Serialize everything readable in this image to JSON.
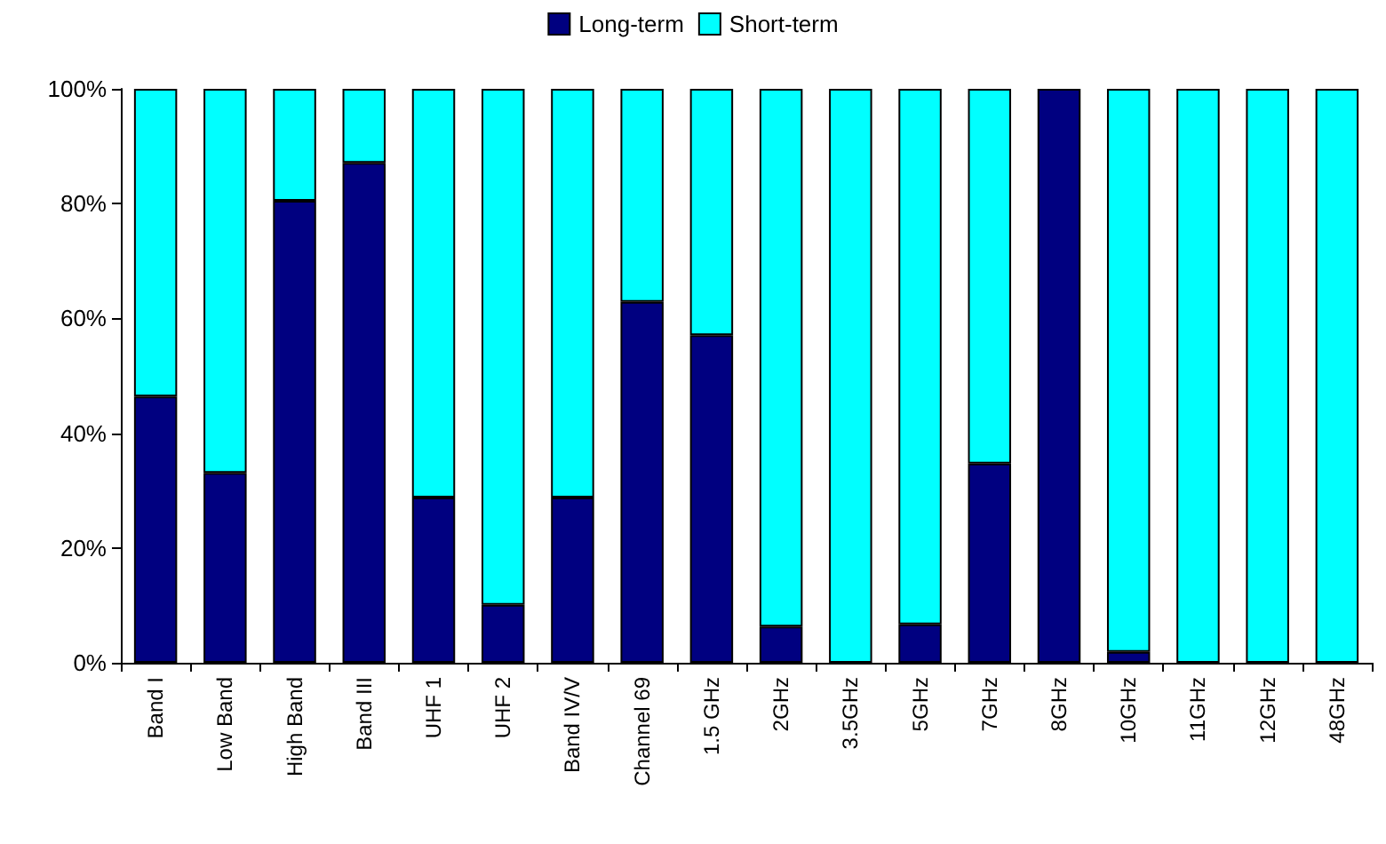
{
  "chart_data": {
    "type": "bar",
    "stacked": true,
    "categories": [
      "Band I",
      "Low Band",
      "High Band",
      "Band III",
      "UHF 1",
      "UHF 2",
      "Band IV/V",
      "Channel 69",
      "1.5 GHz",
      "2GHz",
      "3.5GHz",
      "5GHz",
      "7GHz",
      "8GHz",
      "10GHz",
      "11GHz",
      "12GHz",
      "48GHz"
    ],
    "series": [
      {
        "name": "Long-term",
        "color": "#000080",
        "values": [
          46.4,
          33.1,
          80.5,
          87.1,
          28.8,
          10.1,
          28.8,
          62.9,
          57.1,
          6.3,
          0,
          6.7,
          34.7,
          100,
          1.9,
          0,
          0,
          0
        ]
      },
      {
        "name": "Short-term",
        "color": "#00ffff",
        "values": [
          53.6,
          66.9,
          19.5,
          12.9,
          71.2,
          89.9,
          71.2,
          37.1,
          42.9,
          93.7,
          100,
          93.3,
          65.3,
          0,
          98.1,
          100,
          100,
          100
        ]
      }
    ],
    "ylim": [
      0,
      100
    ],
    "yticks": [
      {
        "value": 0,
        "label": "0%"
      },
      {
        "value": 20,
        "label": "20%"
      },
      {
        "value": 40,
        "label": "40%"
      },
      {
        "value": 60,
        "label": "60%"
      },
      {
        "value": 80,
        "label": "80%"
      },
      {
        "value": 100,
        "label": "100%"
      }
    ],
    "grid": false,
    "legend": "top"
  }
}
